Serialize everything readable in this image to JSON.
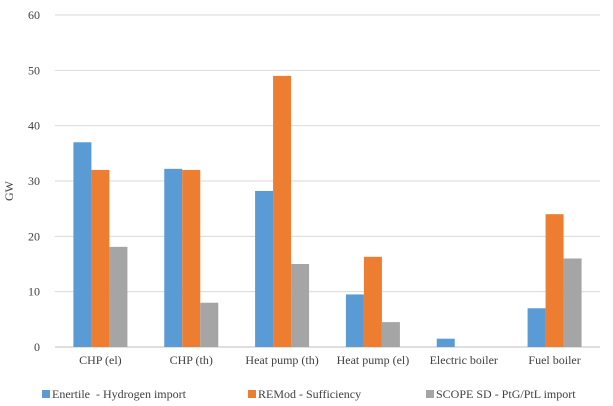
{
  "chart_data": {
    "type": "bar",
    "title": "",
    "xlabel": "",
    "ylabel": "GW",
    "ylim": [
      0,
      60
    ],
    "yticks": [
      0,
      10,
      20,
      30,
      40,
      50,
      60
    ],
    "grid": true,
    "legend_position": "bottom",
    "categories": [
      "CHP (el)",
      "CHP (th)",
      "Heat pump (th)",
      "Heat pump (el)",
      "Electric boiler",
      "Fuel boiler"
    ],
    "series": [
      {
        "name": "Enertile  - Hydrogen import",
        "color": "#5b9bd5",
        "values": [
          37,
          32.2,
          28.2,
          9.5,
          1.5,
          7
        ]
      },
      {
        "name": "REMod - Sufficiency",
        "color": "#ed7d31",
        "values": [
          32,
          32,
          49,
          16.3,
          0,
          24
        ]
      },
      {
        "name": "SCOPE SD - PtG/PtL import",
        "color": "#a5a5a5",
        "values": [
          18.1,
          8,
          15,
          4.5,
          0,
          16
        ]
      }
    ]
  }
}
